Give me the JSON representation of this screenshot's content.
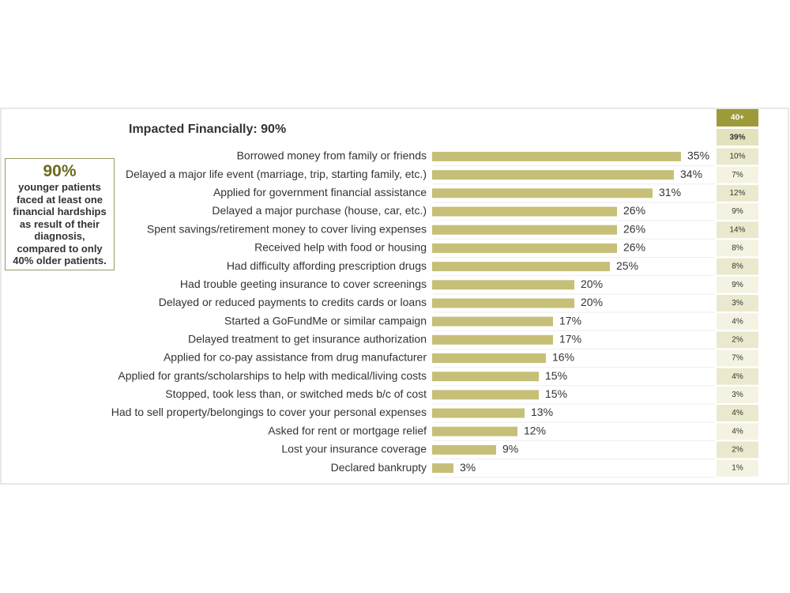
{
  "chart_data": {
    "type": "bar",
    "orientation": "horizontal",
    "title": "Impacted Financially: 90%",
    "categories": [
      "Borrowed money from family or friends",
      "Delayed a major life event (marriage, trip, starting family, etc.)",
      "Applied for government financial assistance",
      "Delayed a major purchase (house, car, etc.)",
      "Spent savings/retirement money to cover living expenses",
      "Received help with food or housing",
      "Had difficulty affording prescription drugs",
      "Had trouble geeting insurance to cover screenings",
      "Delayed or reduced payments to credits cards or loans",
      "Started a GoFundMe or similar campaign",
      "Delayed treatment to get insurance authorization",
      "Applied for co-pay assistance from drug manufacturer",
      "Applied for grants/scholarships to help with medical/living costs",
      "Stopped, took less than, or switched meds b/c of cost",
      "Had to sell property/belongings to cover your personal expenses",
      "Asked for rent or mortgage relief",
      "Lost your insurance coverage",
      "Declared bankrupty"
    ],
    "values": [
      35,
      34,
      31,
      26,
      26,
      26,
      25,
      20,
      20,
      17,
      17,
      16,
      15,
      15,
      13,
      12,
      9,
      3
    ],
    "value_labels": [
      "35%",
      "34%",
      "31%",
      "26%",
      "26%",
      "26%",
      "25%",
      "20%",
      "20%",
      "17%",
      "17%",
      "16%",
      "15%",
      "15%",
      "13%",
      "12%",
      "9%",
      "3%"
    ],
    "color": "#c6bf78",
    "comparison": {
      "header": "40+",
      "total": "39%",
      "values": [
        "10%",
        "7%",
        "12%",
        "9%",
        "14%",
        "8%",
        "8%",
        "9%",
        "3%",
        "4%",
        "2%",
        "7%",
        "4%",
        "3%",
        "4%",
        "4%",
        "2%",
        "1%"
      ]
    }
  },
  "callout": {
    "value": "90%",
    "text": "younger patients faced at least one financial hardships as result of their diagnosis, compared to only 40% older patients."
  }
}
